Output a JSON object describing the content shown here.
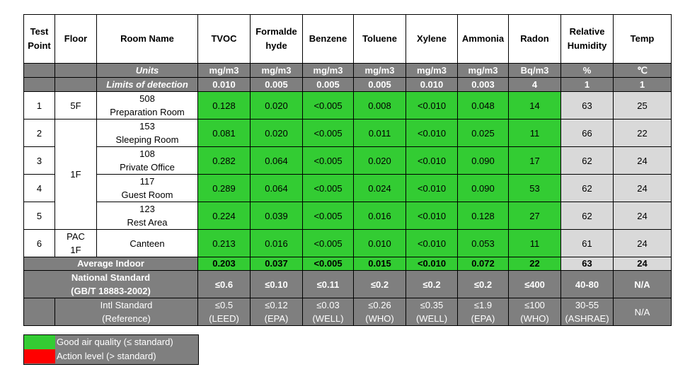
{
  "headers": [
    "Test Point",
    "Floor",
    "Room Name",
    "TVOC",
    "Formaldehyde",
    "Benzene",
    "Toluene",
    "Xylene",
    "Ammonia",
    "Radon",
    "Relative Humidity",
    "Temp"
  ],
  "header_display": {
    "test_point": [
      "Test",
      "Point"
    ],
    "floor": "Floor",
    "room_name": "Room Name",
    "tvoc": "TVOC",
    "formaldehyde": [
      "Formalde",
      "hyde"
    ],
    "benzene": "Benzene",
    "toluene": "Toluene",
    "xylene": "Xylene",
    "ammonia": "Ammonia",
    "radon": "Radon",
    "rh": [
      "Relative",
      "Humidity"
    ],
    "temp": "Temp"
  },
  "units_label": "Units",
  "units": [
    "mg/m3",
    "mg/m3",
    "mg/m3",
    "mg/m3",
    "mg/m3",
    "mg/m3",
    "Bq/m3",
    "%",
    "℃"
  ],
  "lod_label": "Limits of detection",
  "lod": [
    "0.010",
    "0.005",
    "0.005",
    "0.005",
    "0.010",
    "0.003",
    "4",
    "1",
    "1"
  ],
  "rows": [
    {
      "point": "1",
      "floor": "5F",
      "code": "508",
      "name": "Preparation Room",
      "values": [
        "0.128",
        "0.020",
        "<0.005",
        "0.008",
        "<0.010",
        "0.048",
        "14",
        "63",
        "25"
      ]
    },
    {
      "point": "2",
      "floor": "1F",
      "code": "153",
      "name": "Sleeping Room",
      "values": [
        "0.081",
        "0.020",
        "<0.005",
        "0.011",
        "<0.010",
        "0.025",
        "11",
        "66",
        "22"
      ]
    },
    {
      "point": "3",
      "floor": "1F",
      "code": "108",
      "name": "Private Office",
      "values": [
        "0.282",
        "0.064",
        "<0.005",
        "0.020",
        "<0.010",
        "0.090",
        "17",
        "62",
        "24"
      ]
    },
    {
      "point": "4",
      "floor": "1F",
      "code": "117",
      "name": "Guest Room",
      "values": [
        "0.289",
        "0.064",
        "<0.005",
        "0.024",
        "<0.010",
        "0.090",
        "53",
        "62",
        "24"
      ]
    },
    {
      "point": "5",
      "floor": "1F",
      "code": "123",
      "name": "Rest Area",
      "values": [
        "0.224",
        "0.039",
        "<0.005",
        "0.016",
        "<0.010",
        "0.128",
        "27",
        "62",
        "24"
      ]
    },
    {
      "point": "6",
      "floor": "PAC 1F",
      "code": "",
      "name": "Canteen",
      "values": [
        "0.213",
        "0.016",
        "<0.005",
        "0.010",
        "<0.010",
        "0.053",
        "11",
        "61",
        "24"
      ]
    }
  ],
  "floor_labels": {
    "r1": "5F",
    "group": "1F",
    "r6_a": "PAC",
    "r6_b": "1F"
  },
  "average": {
    "label": "Average Indoor",
    "values": [
      "0.203",
      "0.037",
      "<0.005",
      "0.015",
      "<0.010",
      "0.072",
      "22",
      "63",
      "24"
    ]
  },
  "national": {
    "label_a": "National Standard",
    "label_b": "(GB/T 18883-2002)",
    "values": [
      "≤0.6",
      "≤0.10",
      "≤0.11",
      "≤0.2",
      "≤0.2",
      "≤0.2",
      "≤400",
      "40-80",
      "N/A"
    ]
  },
  "intl": {
    "label_a": "Intl Standard",
    "label_b": "(Reference)",
    "values": [
      "≤0.5",
      "≤0.12",
      "≤0.03",
      "≤0.26",
      "≤0.35",
      "≤1.9",
      "≤100",
      "30-55",
      "N/A"
    ],
    "refs": [
      "(LEED)",
      "(EPA)",
      "(WELL)",
      "(WHO)",
      "(WELL)",
      "(EPA)",
      "(WHO)",
      "(ASHRAE)",
      ""
    ]
  },
  "legend": {
    "good": "Good air quality (≤ standard)",
    "action": "Action level (> standard)"
  },
  "colors": {
    "good": "#33cc33",
    "action": "#ff0000",
    "header_gray": "#7f7f7f",
    "light_gray": "#d9d9d9"
  }
}
